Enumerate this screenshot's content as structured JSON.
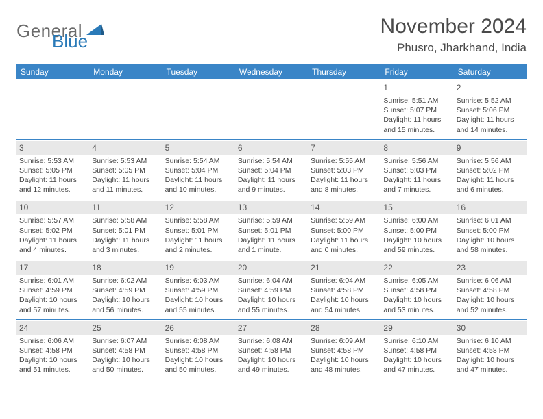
{
  "logo": {
    "general": "General",
    "blue": "Blue"
  },
  "title": "November 2024",
  "location": "Phusro, Jharkhand, India",
  "colors": {
    "header_bg": "#3a85c7",
    "header_text": "#ffffff",
    "daynum_bg": "#e8e8e8",
    "border": "#3a85c7",
    "logo_gray": "#6b6b6b",
    "logo_blue": "#2a7ab8"
  },
  "weekdays": [
    "Sunday",
    "Monday",
    "Tuesday",
    "Wednesday",
    "Thursday",
    "Friday",
    "Saturday"
  ],
  "weeks": [
    [
      null,
      null,
      null,
      null,
      null,
      {
        "n": "1",
        "sr": "5:51 AM",
        "ss": "5:07 PM",
        "dl": "11 hours and 15 minutes."
      },
      {
        "n": "2",
        "sr": "5:52 AM",
        "ss": "5:06 PM",
        "dl": "11 hours and 14 minutes."
      }
    ],
    [
      {
        "n": "3",
        "sr": "5:53 AM",
        "ss": "5:05 PM",
        "dl": "11 hours and 12 minutes."
      },
      {
        "n": "4",
        "sr": "5:53 AM",
        "ss": "5:05 PM",
        "dl": "11 hours and 11 minutes."
      },
      {
        "n": "5",
        "sr": "5:54 AM",
        "ss": "5:04 PM",
        "dl": "11 hours and 10 minutes."
      },
      {
        "n": "6",
        "sr": "5:54 AM",
        "ss": "5:04 PM",
        "dl": "11 hours and 9 minutes."
      },
      {
        "n": "7",
        "sr": "5:55 AM",
        "ss": "5:03 PM",
        "dl": "11 hours and 8 minutes."
      },
      {
        "n": "8",
        "sr": "5:56 AM",
        "ss": "5:03 PM",
        "dl": "11 hours and 7 minutes."
      },
      {
        "n": "9",
        "sr": "5:56 AM",
        "ss": "5:02 PM",
        "dl": "11 hours and 6 minutes."
      }
    ],
    [
      {
        "n": "10",
        "sr": "5:57 AM",
        "ss": "5:02 PM",
        "dl": "11 hours and 4 minutes."
      },
      {
        "n": "11",
        "sr": "5:58 AM",
        "ss": "5:01 PM",
        "dl": "11 hours and 3 minutes."
      },
      {
        "n": "12",
        "sr": "5:58 AM",
        "ss": "5:01 PM",
        "dl": "11 hours and 2 minutes."
      },
      {
        "n": "13",
        "sr": "5:59 AM",
        "ss": "5:01 PM",
        "dl": "11 hours and 1 minute."
      },
      {
        "n": "14",
        "sr": "5:59 AM",
        "ss": "5:00 PM",
        "dl": "11 hours and 0 minutes."
      },
      {
        "n": "15",
        "sr": "6:00 AM",
        "ss": "5:00 PM",
        "dl": "10 hours and 59 minutes."
      },
      {
        "n": "16",
        "sr": "6:01 AM",
        "ss": "5:00 PM",
        "dl": "10 hours and 58 minutes."
      }
    ],
    [
      {
        "n": "17",
        "sr": "6:01 AM",
        "ss": "4:59 PM",
        "dl": "10 hours and 57 minutes."
      },
      {
        "n": "18",
        "sr": "6:02 AM",
        "ss": "4:59 PM",
        "dl": "10 hours and 56 minutes."
      },
      {
        "n": "19",
        "sr": "6:03 AM",
        "ss": "4:59 PM",
        "dl": "10 hours and 55 minutes."
      },
      {
        "n": "20",
        "sr": "6:04 AM",
        "ss": "4:59 PM",
        "dl": "10 hours and 55 minutes."
      },
      {
        "n": "21",
        "sr": "6:04 AM",
        "ss": "4:58 PM",
        "dl": "10 hours and 54 minutes."
      },
      {
        "n": "22",
        "sr": "6:05 AM",
        "ss": "4:58 PM",
        "dl": "10 hours and 53 minutes."
      },
      {
        "n": "23",
        "sr": "6:06 AM",
        "ss": "4:58 PM",
        "dl": "10 hours and 52 minutes."
      }
    ],
    [
      {
        "n": "24",
        "sr": "6:06 AM",
        "ss": "4:58 PM",
        "dl": "10 hours and 51 minutes."
      },
      {
        "n": "25",
        "sr": "6:07 AM",
        "ss": "4:58 PM",
        "dl": "10 hours and 50 minutes."
      },
      {
        "n": "26",
        "sr": "6:08 AM",
        "ss": "4:58 PM",
        "dl": "10 hours and 50 minutes."
      },
      {
        "n": "27",
        "sr": "6:08 AM",
        "ss": "4:58 PM",
        "dl": "10 hours and 49 minutes."
      },
      {
        "n": "28",
        "sr": "6:09 AM",
        "ss": "4:58 PM",
        "dl": "10 hours and 48 minutes."
      },
      {
        "n": "29",
        "sr": "6:10 AM",
        "ss": "4:58 PM",
        "dl": "10 hours and 47 minutes."
      },
      {
        "n": "30",
        "sr": "6:10 AM",
        "ss": "4:58 PM",
        "dl": "10 hours and 47 minutes."
      }
    ]
  ],
  "labels": {
    "sunrise": "Sunrise: ",
    "sunset": "Sunset: ",
    "daylight": "Daylight: "
  }
}
